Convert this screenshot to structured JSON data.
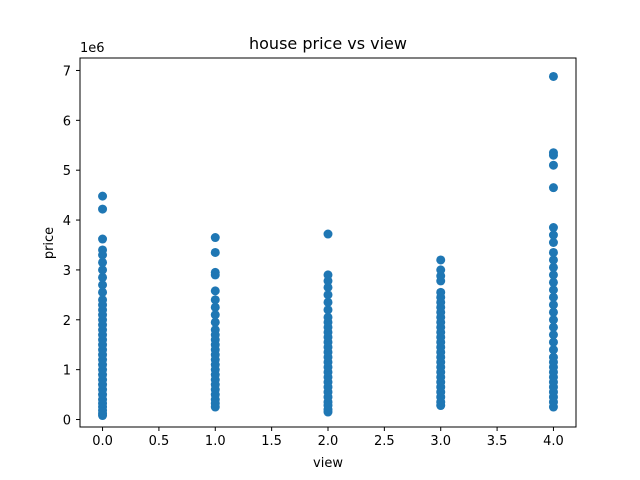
{
  "chart_data": {
    "type": "scatter",
    "title": "house price vs view",
    "xlabel": "view",
    "ylabel": "price",
    "y_scale_label": "1e6",
    "xlim": [
      -0.2,
      4.2
    ],
    "ylim": [
      -0.15,
      7.25
    ],
    "x_ticks": [
      0.0,
      0.5,
      1.0,
      1.5,
      2.0,
      2.5,
      3.0,
      3.5,
      4.0
    ],
    "x_tick_labels": [
      "0.0",
      "0.5",
      "1.0",
      "1.5",
      "2.0",
      "2.5",
      "3.0",
      "3.5",
      "4.0"
    ],
    "y_ticks": [
      0,
      1,
      2,
      3,
      4,
      5,
      6,
      7
    ],
    "y_tick_labels": [
      "0",
      "1",
      "2",
      "3",
      "4",
      "5",
      "6",
      "7"
    ],
    "point_color": "#1f77b4",
    "grid": false,
    "series": [
      {
        "x_value": 0,
        "prices_millions": [
          0.08,
          0.12,
          0.18,
          0.25,
          0.32,
          0.4,
          0.5,
          0.6,
          0.7,
          0.8,
          0.9,
          1.0,
          1.1,
          1.2,
          1.3,
          1.4,
          1.5,
          1.6,
          1.7,
          1.8,
          1.9,
          2.0,
          2.1,
          2.2,
          2.3,
          2.4,
          2.55,
          2.7,
          2.85,
          3.0,
          3.15,
          3.3,
          3.4,
          3.62,
          4.22,
          4.48
        ]
      },
      {
        "x_value": 1,
        "prices_millions": [
          0.25,
          0.32,
          0.4,
          0.5,
          0.6,
          0.7,
          0.8,
          0.9,
          1.0,
          1.1,
          1.2,
          1.3,
          1.4,
          1.5,
          1.6,
          1.7,
          1.8,
          1.95,
          2.1,
          2.25,
          2.4,
          2.58,
          2.9,
          2.95,
          3.35,
          3.65
        ]
      },
      {
        "x_value": 2,
        "prices_millions": [
          0.15,
          0.2,
          0.28,
          0.35,
          0.45,
          0.55,
          0.65,
          0.75,
          0.85,
          0.95,
          1.05,
          1.15,
          1.25,
          1.35,
          1.45,
          1.55,
          1.65,
          1.75,
          1.85,
          1.95,
          2.05,
          2.2,
          2.35,
          2.5,
          2.65,
          2.78,
          2.9,
          3.72
        ]
      },
      {
        "x_value": 3,
        "prices_millions": [
          0.28,
          0.35,
          0.45,
          0.55,
          0.65,
          0.75,
          0.85,
          0.95,
          1.05,
          1.15,
          1.25,
          1.35,
          1.45,
          1.55,
          1.65,
          1.75,
          1.85,
          1.95,
          2.05,
          2.15,
          2.25,
          2.35,
          2.45,
          2.55,
          2.78,
          2.88,
          3.0,
          3.2
        ]
      },
      {
        "x_value": 4,
        "prices_millions": [
          0.25,
          0.35,
          0.45,
          0.55,
          0.65,
          0.75,
          0.85,
          0.95,
          1.05,
          1.15,
          1.25,
          1.4,
          1.55,
          1.7,
          1.85,
          2.0,
          2.15,
          2.3,
          2.45,
          2.6,
          2.75,
          2.9,
          3.05,
          3.2,
          3.35,
          3.55,
          3.7,
          3.85,
          4.65,
          5.1,
          5.3,
          5.35,
          6.88
        ]
      }
    ]
  }
}
